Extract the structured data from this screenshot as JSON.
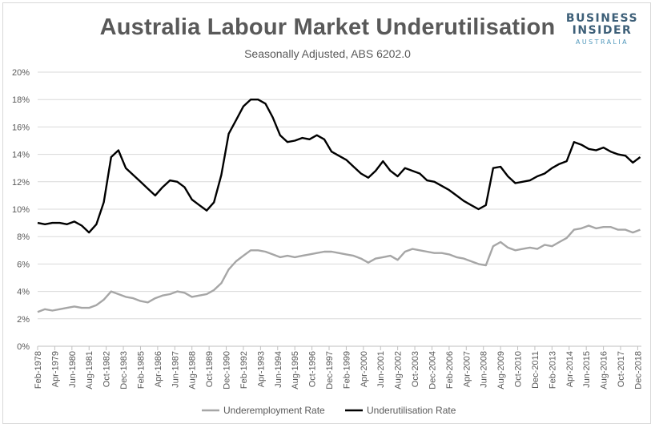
{
  "header": {
    "title": "Australia Labour Market Underutilisation",
    "subtitle": "Seasonally Adjusted, ABS 6202.0",
    "brand_line1": "BUSINESS",
    "brand_line2": "INSIDER",
    "brand_line3": "AUSTRALIA"
  },
  "colors": {
    "underemployment": "#a6a6a6",
    "underutilisation": "#000000",
    "grid": "#d9d9d9"
  },
  "chart_data": {
    "type": "line",
    "title": "Australia Labour Market Underutilisation",
    "subtitle": "Seasonally Adjusted, ABS 6202.0",
    "xlabel": "",
    "ylabel": "",
    "y_unit": "%",
    "ylim": [
      0,
      20
    ],
    "yticks": [
      "0%",
      "2%",
      "4%",
      "6%",
      "8%",
      "10%",
      "12%",
      "14%",
      "16%",
      "18%",
      "20%"
    ],
    "xticks": [
      "Feb-1978",
      "Apr-1979",
      "Jun-1980",
      "Aug-1981",
      "Oct-1982",
      "Dec-1983",
      "Feb-1985",
      "Apr-1986",
      "Jun-1987",
      "Aug-1988",
      "Oct-1989",
      "Dec-1990",
      "Feb-1992",
      "Apr-1993",
      "Jun-1994",
      "Aug-1995",
      "Oct-1996",
      "Dec-1997",
      "Feb-1999",
      "Apr-2000",
      "Jun-2001",
      "Aug-2002",
      "Oct-2003",
      "Dec-2004",
      "Feb-2006",
      "Apr-2007",
      "Jun-2008",
      "Aug-2009",
      "Oct-2010",
      "Dec-2011",
      "Feb-2013",
      "Apr-2014",
      "Jun-2015",
      "Aug-2016",
      "Oct-2017",
      "Dec-2018"
    ],
    "grid": "horizontal",
    "legend_position": "bottom",
    "series": [
      {
        "name": "Underemployment Rate",
        "x": [
          "Feb-1978",
          "Aug-1978",
          "Feb-1979",
          "Aug-1979",
          "Feb-1980",
          "Aug-1980",
          "Feb-1981",
          "Aug-1981",
          "Feb-1982",
          "Aug-1982",
          "Feb-1983",
          "Aug-1983",
          "Feb-1984",
          "Aug-1984",
          "Feb-1985",
          "Aug-1985",
          "Feb-1986",
          "Aug-1986",
          "Feb-1987",
          "Aug-1987",
          "Feb-1988",
          "Aug-1988",
          "Feb-1989",
          "Aug-1989",
          "Feb-1990",
          "Aug-1990",
          "Feb-1991",
          "Aug-1991",
          "Feb-1992",
          "Aug-1992",
          "Feb-1993",
          "Aug-1993",
          "Feb-1994",
          "Aug-1994",
          "Feb-1995",
          "Aug-1995",
          "Feb-1996",
          "Aug-1996",
          "Feb-1997",
          "Aug-1997",
          "Feb-1998",
          "Aug-1998",
          "Feb-1999",
          "Aug-1999",
          "Feb-2000",
          "Aug-2000",
          "Feb-2001",
          "Aug-2001",
          "Feb-2002",
          "Aug-2002",
          "Feb-2003",
          "Aug-2003",
          "Feb-2004",
          "Aug-2004",
          "Feb-2005",
          "Aug-2005",
          "Feb-2006",
          "Aug-2006",
          "Feb-2007",
          "Aug-2007",
          "Feb-2008",
          "Aug-2008",
          "Feb-2009",
          "Aug-2009",
          "Feb-2010",
          "Aug-2010",
          "Feb-2011",
          "Aug-2011",
          "Feb-2012",
          "Aug-2012",
          "Feb-2013",
          "Aug-2013",
          "Feb-2014",
          "Aug-2014",
          "Feb-2015",
          "Aug-2015",
          "Feb-2016",
          "Aug-2016",
          "Feb-2017",
          "Aug-2017",
          "Feb-2018",
          "Aug-2018",
          "Feb-2019"
        ],
        "values": [
          2.5,
          2.7,
          2.6,
          2.7,
          2.8,
          2.9,
          2.8,
          2.8,
          3.0,
          3.4,
          4.0,
          3.8,
          3.6,
          3.5,
          3.3,
          3.2,
          3.5,
          3.7,
          3.8,
          4.0,
          3.9,
          3.6,
          3.7,
          3.8,
          4.1,
          4.6,
          5.6,
          6.2,
          6.6,
          7.0,
          7.0,
          6.9,
          6.7,
          6.5,
          6.6,
          6.5,
          6.6,
          6.7,
          6.8,
          6.9,
          6.9,
          6.8,
          6.7,
          6.6,
          6.4,
          6.1,
          6.4,
          6.5,
          6.6,
          6.3,
          6.9,
          7.1,
          7.0,
          6.9,
          6.8,
          6.8,
          6.7,
          6.5,
          6.4,
          6.2,
          6.0,
          5.9,
          7.3,
          7.6,
          7.2,
          7.0,
          7.1,
          7.2,
          7.1,
          7.4,
          7.3,
          7.6,
          7.9,
          8.5,
          8.6,
          8.8,
          8.6,
          8.7,
          8.7,
          8.5,
          8.5,
          8.3,
          8.5
        ]
      },
      {
        "name": "Underutilisation Rate",
        "x": [
          "Feb-1978",
          "Aug-1978",
          "Feb-1979",
          "Aug-1979",
          "Feb-1980",
          "Aug-1980",
          "Feb-1981",
          "Aug-1981",
          "Feb-1982",
          "Aug-1982",
          "Feb-1983",
          "Aug-1983",
          "Feb-1984",
          "Aug-1984",
          "Feb-1985",
          "Aug-1985",
          "Feb-1986",
          "Aug-1986",
          "Feb-1987",
          "Aug-1987",
          "Feb-1988",
          "Aug-1988",
          "Feb-1989",
          "Aug-1989",
          "Feb-1990",
          "Aug-1990",
          "Feb-1991",
          "Aug-1991",
          "Feb-1992",
          "Aug-1992",
          "Feb-1993",
          "Aug-1993",
          "Feb-1994",
          "Aug-1994",
          "Feb-1995",
          "Aug-1995",
          "Feb-1996",
          "Aug-1996",
          "Feb-1997",
          "Aug-1997",
          "Feb-1998",
          "Aug-1998",
          "Feb-1999",
          "Aug-1999",
          "Feb-2000",
          "Aug-2000",
          "Feb-2001",
          "Aug-2001",
          "Feb-2002",
          "Aug-2002",
          "Feb-2003",
          "Aug-2003",
          "Feb-2004",
          "Aug-2004",
          "Feb-2005",
          "Aug-2005",
          "Feb-2006",
          "Aug-2006",
          "Feb-2007",
          "Aug-2007",
          "Feb-2008",
          "Aug-2008",
          "Feb-2009",
          "Aug-2009",
          "Feb-2010",
          "Aug-2010",
          "Feb-2011",
          "Aug-2011",
          "Feb-2012",
          "Aug-2012",
          "Feb-2013",
          "Aug-2013",
          "Feb-2014",
          "Aug-2014",
          "Feb-2015",
          "Aug-2015",
          "Feb-2016",
          "Aug-2016",
          "Feb-2017",
          "Aug-2017",
          "Feb-2018",
          "Aug-2018",
          "Feb-2019"
        ],
        "values": [
          9.0,
          8.9,
          9.0,
          9.0,
          8.9,
          9.1,
          8.8,
          8.3,
          8.9,
          10.5,
          13.8,
          14.3,
          13.0,
          12.5,
          12.0,
          11.5,
          11.0,
          11.6,
          12.1,
          12.0,
          11.6,
          10.7,
          10.3,
          9.9,
          10.5,
          12.5,
          15.5,
          16.5,
          17.5,
          18.0,
          18.0,
          17.7,
          16.7,
          15.4,
          14.9,
          15.0,
          15.2,
          15.1,
          15.4,
          15.1,
          14.2,
          13.9,
          13.6,
          13.1,
          12.6,
          12.3,
          12.8,
          13.5,
          12.8,
          12.4,
          13.0,
          12.8,
          12.6,
          12.1,
          12.0,
          11.7,
          11.4,
          11.0,
          10.6,
          10.3,
          10.0,
          10.3,
          13.0,
          13.1,
          12.4,
          11.9,
          12.0,
          12.1,
          12.4,
          12.6,
          13.0,
          13.3,
          13.5,
          14.9,
          14.7,
          14.4,
          14.3,
          14.5,
          14.2,
          14.0,
          13.9,
          13.4,
          13.8
        ]
      }
    ]
  }
}
